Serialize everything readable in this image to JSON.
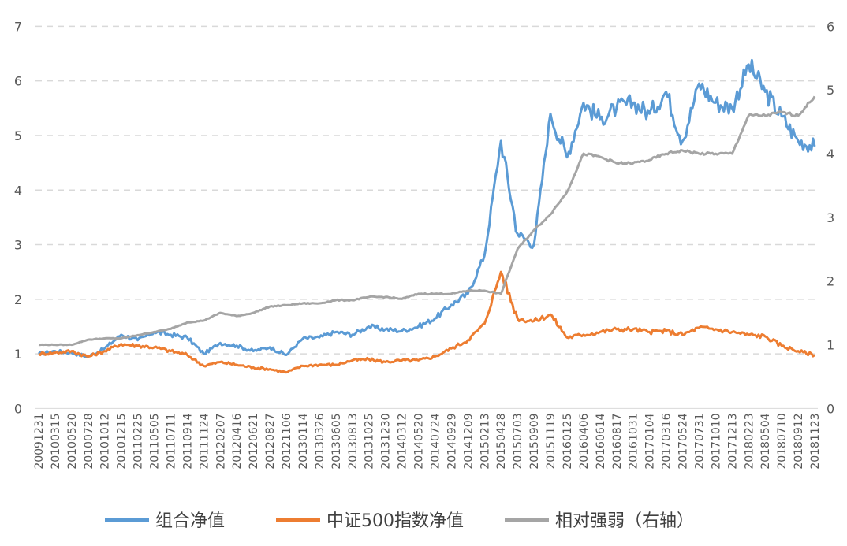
{
  "chart_data": {
    "type": "line",
    "left_axis": {
      "ticks": [
        "0",
        "1",
        "2",
        "3",
        "4",
        "5",
        "6",
        "7"
      ],
      "ylim": [
        0,
        7
      ]
    },
    "right_axis": {
      "ticks": [
        "0",
        "1",
        "2",
        "3",
        "4",
        "5",
        "6"
      ],
      "ylim": [
        0,
        6
      ]
    },
    "grid": "horizontal dashed",
    "legend_position": "bottom",
    "x_ticks": [
      "20091231",
      "20100315",
      "20100520",
      "20100728",
      "20101012",
      "20101215",
      "20110225",
      "20110505",
      "20110711",
      "20110914",
      "20111124",
      "20120207",
      "20120416",
      "20120621",
      "20120827",
      "20121106",
      "20130114",
      "20130326",
      "20130605",
      "20130813",
      "20131025",
      "20131230",
      "20140312",
      "20140520",
      "20140724",
      "20140929",
      "20141209",
      "20150213",
      "20150428",
      "20150703",
      "20150909",
      "20151119",
      "20160125",
      "20160406",
      "20160614",
      "20160817",
      "20161031",
      "20170104",
      "20170316",
      "20170524",
      "20170731",
      "20171010",
      "20171213",
      "20180223",
      "20180504",
      "20180710",
      "20180912",
      "20181123"
    ],
    "series": [
      {
        "name": "组合净值",
        "axis": "left",
        "color": "#5b9bd5",
        "values": [
          1.0,
          1.05,
          1.02,
          0.95,
          1.1,
          1.35,
          1.25,
          1.4,
          1.35,
          1.3,
          1.0,
          1.2,
          1.15,
          1.05,
          1.12,
          0.98,
          1.28,
          1.3,
          1.4,
          1.35,
          1.5,
          1.45,
          1.42,
          1.5,
          1.65,
          1.9,
          2.1,
          2.8,
          4.9,
          3.2,
          3.0,
          5.4,
          4.6,
          5.6,
          5.3,
          5.5,
          5.6,
          5.4,
          5.8,
          4.9,
          5.95,
          5.6,
          5.5,
          6.3,
          5.8,
          5.35,
          4.9,
          4.8
        ]
      },
      {
        "name": "中证500指数净值",
        "axis": "left",
        "color": "#ed7d31",
        "values": [
          1.0,
          1.02,
          1.05,
          0.95,
          1.05,
          1.18,
          1.15,
          1.12,
          1.05,
          0.98,
          0.78,
          0.85,
          0.8,
          0.75,
          0.72,
          0.66,
          0.78,
          0.8,
          0.8,
          0.88,
          0.9,
          0.85,
          0.88,
          0.88,
          0.95,
          1.1,
          1.25,
          1.55,
          2.5,
          1.65,
          1.6,
          1.72,
          1.3,
          1.35,
          1.4,
          1.45,
          1.45,
          1.4,
          1.42,
          1.35,
          1.48,
          1.45,
          1.4,
          1.35,
          1.32,
          1.15,
          1.05,
          0.98
        ]
      },
      {
        "name": "相对强弱（右轴）",
        "axis": "right",
        "color": "#a5a5a5",
        "values": [
          1.0,
          1.0,
          1.0,
          1.08,
          1.1,
          1.1,
          1.15,
          1.2,
          1.25,
          1.35,
          1.38,
          1.5,
          1.45,
          1.5,
          1.6,
          1.62,
          1.65,
          1.65,
          1.7,
          1.7,
          1.75,
          1.75,
          1.72,
          1.8,
          1.8,
          1.8,
          1.85,
          1.85,
          1.8,
          2.5,
          2.8,
          3.05,
          3.4,
          4.0,
          3.95,
          3.85,
          3.85,
          3.9,
          4.0,
          4.05,
          4.0,
          4.0,
          4.0,
          4.6,
          4.6,
          4.65,
          4.6,
          4.9
        ]
      }
    ]
  }
}
